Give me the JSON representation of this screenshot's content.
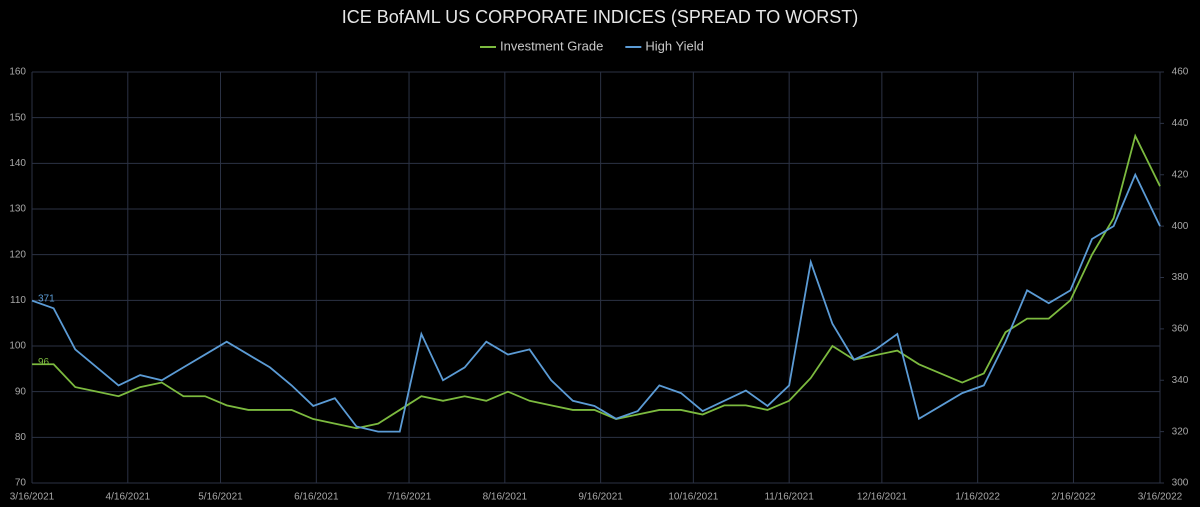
{
  "chart_data": {
    "type": "line",
    "title": "ICE BofAML US CORPORATE INDICES (SPREAD TO WORST)",
    "x": [
      "3/16/2021",
      "3/23/2021",
      "3/30/2021",
      "4/6/2021",
      "4/13/2021",
      "4/20/2021",
      "4/27/2021",
      "5/4/2021",
      "5/11/2021",
      "5/18/2021",
      "5/25/2021",
      "6/1/2021",
      "6/8/2021",
      "6/15/2021",
      "6/22/2021",
      "6/29/2021",
      "7/6/2021",
      "7/13/2021",
      "7/20/2021",
      "7/27/2021",
      "8/3/2021",
      "8/10/2021",
      "8/17/2021",
      "8/24/2021",
      "8/31/2021",
      "9/7/2021",
      "9/14/2021",
      "9/21/2021",
      "9/28/2021",
      "10/5/2021",
      "10/12/2021",
      "10/19/2021",
      "10/26/2021",
      "11/2/2021",
      "11/9/2021",
      "11/16/2021",
      "11/23/2021",
      "11/30/2021",
      "12/7/2021",
      "12/14/2021",
      "12/21/2021",
      "12/28/2021",
      "1/4/2022",
      "1/11/2022",
      "1/18/2022",
      "1/25/2022",
      "2/1/2022",
      "2/8/2022",
      "2/15/2022",
      "2/22/2022",
      "3/1/2022",
      "3/8/2022",
      "3/16/2022"
    ],
    "series": [
      {
        "name": "Investment Grade",
        "color": "#7cba3f",
        "axis": "y",
        "label_first": true,
        "values": [
          96,
          96,
          91,
          90,
          89,
          91,
          92,
          89,
          89,
          87,
          86,
          86,
          86,
          84,
          83,
          82,
          83,
          86,
          89,
          88,
          89,
          88,
          90,
          88,
          87,
          86,
          86,
          84,
          85,
          86,
          86,
          85,
          87,
          87,
          86,
          88,
          93,
          100,
          97,
          98,
          99,
          96,
          94,
          92,
          94,
          103,
          106,
          106,
          110,
          120,
          128,
          146,
          135
        ]
      },
      {
        "name": "High Yield",
        "color": "#5b9bd5",
        "axis": "y2",
        "label_first": true,
        "values": [
          371,
          368,
          352,
          345,
          338,
          342,
          340,
          345,
          350,
          355,
          350,
          345,
          338,
          330,
          333,
          322,
          320,
          320,
          358,
          340,
          345,
          355,
          350,
          352,
          340,
          332,
          330,
          325,
          328,
          338,
          335,
          328,
          332,
          336,
          330,
          338,
          386,
          362,
          348,
          352,
          358,
          325,
          330,
          335,
          338,
          355,
          375,
          370,
          375,
          395,
          400,
          420,
          400
        ]
      }
    ],
    "xlim": [
      "3/16/2021",
      "3/16/2022"
    ],
    "xticks": [
      "3/16/2021",
      "4/16/2021",
      "5/16/2021",
      "6/16/2021",
      "7/16/2021",
      "8/16/2021",
      "9/16/2021",
      "10/16/2021",
      "11/16/2021",
      "12/16/2021",
      "1/16/2022",
      "2/16/2022",
      "3/16/2022"
    ],
    "ylim": [
      70,
      160
    ],
    "yticks": [
      70,
      80,
      90,
      100,
      110,
      120,
      130,
      140,
      150,
      160
    ],
    "y2lim": [
      300,
      460
    ],
    "y2ticks": [
      300,
      320,
      340,
      360,
      380,
      400,
      420,
      440,
      460
    ],
    "grid": true,
    "legend": "top"
  }
}
